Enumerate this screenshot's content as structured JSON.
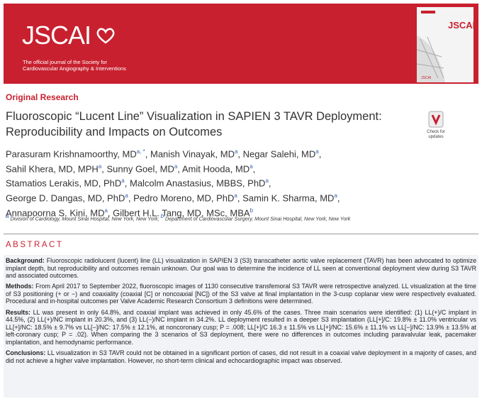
{
  "header": {
    "logo": "JSCAI",
    "tagline": [
      "The official journal of the Society for",
      "Cardiovascular Angiography & Interventions"
    ],
    "cover_title": "JSCAI",
    "cover_footer": "JSCAI"
  },
  "article": {
    "section": "Original Research",
    "title": [
      "Fluoroscopic “Lucent Line” Visualization in SAPIEN 3 TAVR Deployment:",
      "Reproducibility and Impacts on Outcomes"
    ],
    "check_updates": [
      "Check for",
      "updates"
    ],
    "author_lines": [
      [
        {
          "name": "Parasuram Krishnamoorthy, MD",
          "sup": "a, *",
          "sep": ","
        },
        {
          "name": "Manish Vinayak, MD",
          "sup": "a",
          "sep": ","
        },
        {
          "name": "Negar Salehi, MD",
          "sup": "a",
          "sep": ","
        }
      ],
      [
        {
          "name": "Sahil Khera, MD, MPH",
          "sup": "a",
          "sep": ","
        },
        {
          "name": "Sunny Goel, MD",
          "sup": "a",
          "sep": ","
        },
        {
          "name": "Amit Hooda, MD",
          "sup": "a",
          "sep": ","
        }
      ],
      [
        {
          "name": "Stamatios Lerakis, MD, PhD",
          "sup": "a",
          "sep": ","
        },
        {
          "name": "Malcolm Anastasius, MBBS, PhD",
          "sup": "a",
          "sep": ","
        }
      ],
      [
        {
          "name": "George D. Dangas, MD, PhD",
          "sup": "a",
          "sep": ","
        },
        {
          "name": "Pedro Moreno, MD, PhD",
          "sup": "a",
          "sep": ","
        },
        {
          "name": "Samin K. Sharma, MD",
          "sup": "a",
          "sep": ","
        }
      ],
      [
        {
          "name": "Annapoorna S. Kini, MD",
          "sup": "a",
          "sep": ","
        },
        {
          "name": "Gilbert H.L. Tang, MD, MSc, MBA",
          "sup": "b"
        }
      ]
    ],
    "affiliations": [
      {
        "sup": "a",
        "text": "Division of Cardiology, Mount Sinai Hospital, New York, New York;"
      },
      {
        "sup": "b",
        "text": "Department of Cardiovascular Surgery, Mount Sinai Hospital, New York, New York"
      }
    ]
  },
  "abstract": {
    "heading": "ABSTRACT",
    "sections": [
      {
        "label": "Background:",
        "text": "Fluoroscopic radiolucent (lucent) line (LL) visualization in SAPIEN 3 (S3) transcatheter aortic valve replacement (TAVR) has been advocated to optimize implant depth, but reproducibility and outcomes remain unknown. Our goal was to determine the incidence of LL seen at conventional deployment view during S3 TAVR and associated outcomes."
      },
      {
        "label": "Methods:",
        "text": "From April 2017 to September 2022, fluoroscopic images of 1130 consecutive transfemoral S3 TAVR were retrospective analyzed. LL visualization at the time of S3 positioning (+ or −) and coaxiality (coaxial [C] or noncoaxial [NC]) of the S3 valve at final implantation in the 3-cusp coplanar view were respectively evaluated. Procedural and in-hospital outcomes per Valve Academic Research Consortium 3 definitions were determined."
      },
      {
        "label": "Results:",
        "text": "LL was present in only 64.8%, and coaxial implant was achieved in only 45.6% of the cases. Three main scenarios were identified: (1) LL(+)/C implant in 44.5%, (2) LL(+)/NC implant in 20.3%, and (3) LL(−)/NC implant in 34.2%. LL deployment resulted in a deeper S3 implantation (LL[+]/C: 19.8% ± 11.0% ventricular vs LL[+]/NC: 18.5% ± 9.7% vs LL[−]/NC: 17.5% ± 12.1%, at noncoronary cusp; P = .008; LL[+]/C 16.3 ± 11.5% vs LL[+]/NC: 15.6% ± 11.1% vs LL[−]/NC: 13.9% ± 13.5% at left-coronary cusp; P = .02). When comparing the 3 scenarios of S3 deployment, there were no differences in outcomes including paravalvular leak, pacemaker implantation, and hemodynamic performance."
      },
      {
        "label": "Conclusions:",
        "text": "LL visualization in S3 TAVR could not be obtained in a significant portion of cases, did not result in a coaxial valve deployment in a majority of cases, and did not achieve a higher valve implantation. However, no short-term clinical and echocardiographic impact was observed."
      }
    ]
  }
}
